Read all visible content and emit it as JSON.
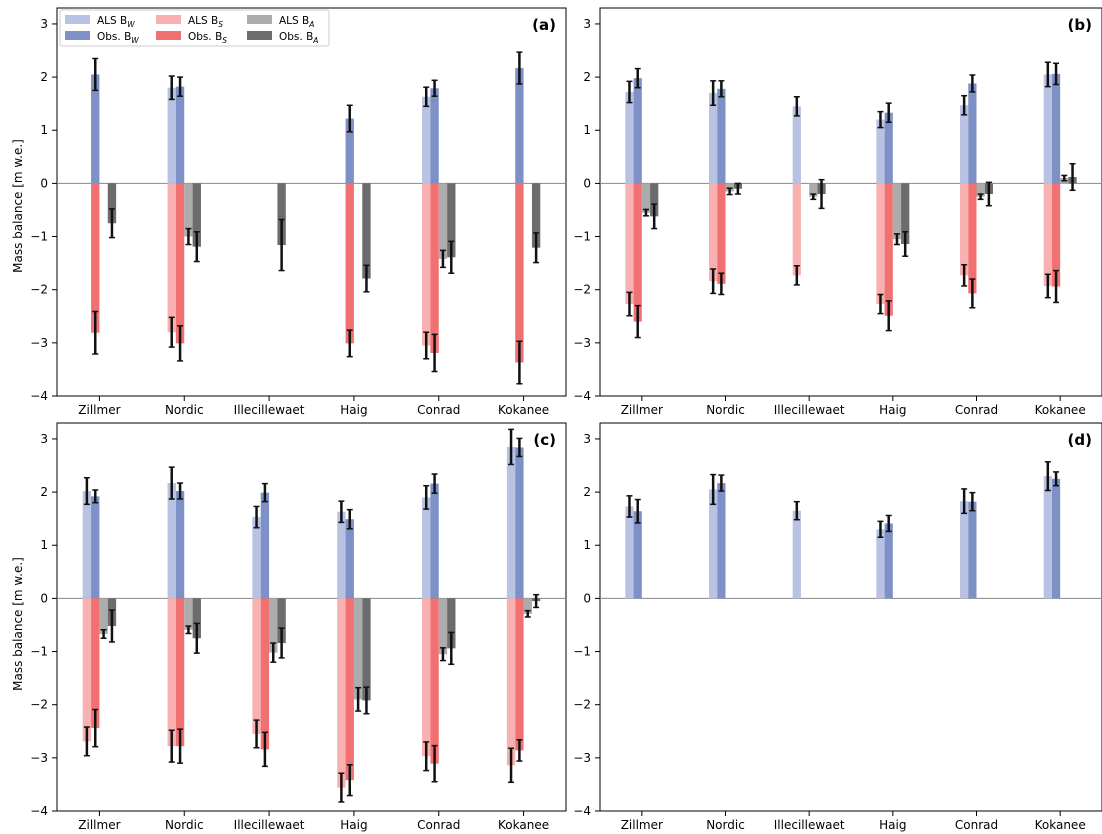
{
  "figure": {
    "ylabel": "Mass balance [m w.e.]"
  },
  "legend": {
    "items": [
      {
        "label": "ALS  B",
        "sub": "W",
        "color": "#b8c2e2"
      },
      {
        "label": "ALS  B",
        "sub": "S",
        "color": "#f8b0b0"
      },
      {
        "label": "ALS  B",
        "sub": "A",
        "color": "#acacac"
      },
      {
        "label": "Obs. B",
        "sub": "W",
        "color": "#7d91c7"
      },
      {
        "label": "Obs. B",
        "sub": "S",
        "color": "#f17072"
      },
      {
        "label": "Obs. B",
        "sub": "A",
        "color": "#6c6c6c"
      }
    ]
  },
  "colors": {
    "als_bw": "#b8c2e2",
    "obs_bw": "#7d91c7",
    "als_bs": "#f8b0b0",
    "obs_bs": "#f17072",
    "als_ba": "#acacac",
    "obs_ba": "#6c6c6c",
    "error": "#111111",
    "zero_line": "#888888"
  },
  "chart_data": [
    {
      "type": "bar",
      "panel_label": "(a)",
      "categories": [
        "Zillmer",
        "Nordic",
        "Illecillewaet",
        "Haig",
        "Conrad",
        "Kokanee"
      ],
      "ylim": [
        -4,
        3.3
      ],
      "yticks": [
        -4,
        -3,
        -2,
        -1,
        0,
        1,
        2,
        3
      ],
      "ytick_labels": [
        "−4",
        "−3",
        "−2",
        "−1",
        "0",
        "1",
        "2",
        "3"
      ],
      "series": [
        {
          "name": "ALS  BW",
          "values": [
            null,
            1.8,
            null,
            null,
            1.63,
            null
          ],
          "errors": [
            null,
            0.22,
            null,
            null,
            0.18,
            null
          ]
        },
        {
          "name": "Obs. BW",
          "values": [
            2.05,
            1.82,
            null,
            1.22,
            1.79,
            2.17
          ],
          "errors": [
            0.3,
            0.18,
            null,
            0.25,
            0.15,
            0.3
          ]
        },
        {
          "name": "ALS  BS",
          "values": [
            null,
            -2.8,
            null,
            null,
            -3.05,
            null
          ],
          "errors": [
            null,
            0.28,
            null,
            null,
            0.25,
            null
          ]
        },
        {
          "name": "Obs. BS",
          "values": [
            -2.81,
            -3.01,
            null,
            -3.01,
            -3.19,
            -3.37
          ],
          "errors": [
            0.4,
            0.33,
            null,
            0.25,
            0.35,
            0.4
          ]
        },
        {
          "name": "ALS  BA",
          "values": [
            null,
            -1.0,
            null,
            null,
            -1.42,
            null
          ],
          "errors": [
            null,
            0.15,
            null,
            null,
            0.16,
            null
          ]
        },
        {
          "name": "Obs. BA",
          "values": [
            -0.75,
            -1.19,
            -1.16,
            -1.79,
            -1.39,
            -1.21
          ],
          "errors": [
            0.27,
            0.28,
            0.48,
            0.25,
            0.3,
            0.28
          ]
        }
      ]
    },
    {
      "type": "bar",
      "panel_label": "(b)",
      "categories": [
        "Zillmer",
        "Nordic",
        "Illecillewaet",
        "Haig",
        "Conrad",
        "Kokanee"
      ],
      "ylim": [
        -4,
        3.3
      ],
      "yticks": [
        -4,
        -3,
        -2,
        -1,
        0,
        1,
        2,
        3
      ],
      "ytick_labels": [
        "−4",
        "−3",
        "−2",
        "−1",
        "0",
        "1",
        "2",
        "3"
      ],
      "series": [
        {
          "name": "ALS  BW",
          "values": [
            1.72,
            1.7,
            1.45,
            1.2,
            1.47,
            2.05
          ],
          "errors": [
            0.2,
            0.23,
            0.18,
            0.15,
            0.18,
            0.23
          ]
        },
        {
          "name": "Obs. BW",
          "values": [
            1.98,
            1.78,
            null,
            1.33,
            1.88,
            2.06
          ],
          "errors": [
            0.18,
            0.15,
            null,
            0.18,
            0.16,
            0.2
          ]
        },
        {
          "name": "ALS  BS",
          "values": [
            -2.27,
            -1.84,
            -1.73,
            -2.27,
            -1.73,
            -1.93
          ],
          "errors": [
            0.22,
            0.23,
            0.18,
            0.18,
            0.2,
            0.22
          ]
        },
        {
          "name": "Obs. BS",
          "values": [
            -2.6,
            -1.89,
            null,
            -2.49,
            -2.07,
            -1.94
          ],
          "errors": [
            0.3,
            0.2,
            null,
            0.28,
            0.27,
            0.3
          ]
        },
        {
          "name": "ALS  BA",
          "values": [
            -0.55,
            -0.15,
            -0.25,
            -1.05,
            -0.25,
            0.1
          ],
          "errors": [
            0.06,
            0.06,
            0.05,
            0.1,
            0.05,
            0.05
          ]
        },
        {
          "name": "Obs. BA",
          "values": [
            -0.62,
            -0.1,
            -0.2,
            -1.14,
            -0.2,
            0.12
          ],
          "errors": [
            0.23,
            0.1,
            0.27,
            0.23,
            0.22,
            0.25
          ]
        }
      ]
    },
    {
      "type": "bar",
      "panel_label": "(c)",
      "categories": [
        "Zillmer",
        "Nordic",
        "Illecillewaet",
        "Haig",
        "Conrad",
        "Kokanee"
      ],
      "ylim": [
        -4,
        3.3
      ],
      "yticks": [
        -4,
        -3,
        -2,
        -1,
        0,
        1,
        2,
        3
      ],
      "ytick_labels": [
        "−4",
        "−3",
        "−2",
        "−1",
        "0",
        "1",
        "2",
        "3"
      ],
      "series": [
        {
          "name": "ALS  BW",
          "values": [
            2.02,
            2.17,
            1.53,
            1.63,
            1.9,
            2.85
          ],
          "errors": [
            0.25,
            0.3,
            0.2,
            0.2,
            0.22,
            0.33
          ]
        },
        {
          "name": "Obs. BW",
          "values": [
            1.92,
            2.02,
            1.99,
            1.49,
            2.16,
            2.84
          ],
          "errors": [
            0.12,
            0.15,
            0.17,
            0.18,
            0.18,
            0.17
          ]
        },
        {
          "name": "ALS  BS",
          "values": [
            -2.69,
            -2.78,
            -2.55,
            -3.56,
            -2.97,
            -3.14
          ],
          "errors": [
            0.27,
            0.3,
            0.26,
            0.27,
            0.27,
            0.32
          ]
        },
        {
          "name": "Obs. BS",
          "values": [
            -2.44,
            -2.78,
            -2.84,
            -3.42,
            -3.11,
            -2.86
          ],
          "errors": [
            0.35,
            0.32,
            0.32,
            0.29,
            0.34,
            0.2
          ]
        },
        {
          "name": "ALS  BA",
          "values": [
            -0.67,
            -0.59,
            -1.02,
            -1.9,
            -1.05,
            -0.29
          ],
          "errors": [
            0.08,
            0.07,
            0.18,
            0.22,
            0.12,
            0.06
          ]
        },
        {
          "name": "Obs. BA",
          "values": [
            -0.52,
            -0.75,
            -0.84,
            -1.92,
            -0.94,
            -0.05
          ],
          "errors": [
            0.3,
            0.28,
            0.28,
            0.25,
            0.3,
            0.12
          ]
        }
      ]
    },
    {
      "type": "bar",
      "panel_label": "(d)",
      "categories": [
        "Zillmer",
        "Nordic",
        "Illecillewaet",
        "Haig",
        "Conrad",
        "Kokanee"
      ],
      "ylim": [
        -4,
        3.3
      ],
      "yticks": [
        -4,
        -3,
        -2,
        -1,
        0,
        1,
        2,
        3
      ],
      "ytick_labels": [
        "−4",
        "−3",
        "−2",
        "−1",
        "0",
        "1",
        "2",
        "3"
      ],
      "series": [
        {
          "name": "ALS  BW",
          "values": [
            1.73,
            2.05,
            1.65,
            1.3,
            1.83,
            2.3
          ],
          "errors": [
            0.2,
            0.28,
            0.17,
            0.15,
            0.23,
            0.27
          ]
        },
        {
          "name": "Obs. BW",
          "values": [
            1.64,
            2.17,
            null,
            1.41,
            1.82,
            2.25
          ],
          "errors": [
            0.22,
            0.15,
            null,
            0.15,
            0.17,
            0.13
          ]
        }
      ]
    }
  ]
}
